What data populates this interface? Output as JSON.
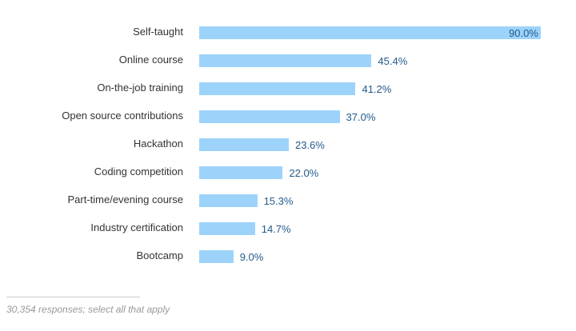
{
  "chart_data": {
    "type": "bar",
    "orientation": "horizontal",
    "categories": [
      "Self-taught",
      "Online course",
      "On-the-job training",
      "Open source contributions",
      "Hackathon",
      "Coding competition",
      "Part-time/evening course",
      "Industry certification",
      "Bootcamp"
    ],
    "values": [
      90.0,
      45.4,
      41.2,
      37.0,
      23.6,
      22.0,
      15.3,
      14.7,
      9.0
    ],
    "value_labels": [
      "90.0%",
      "45.4%",
      "41.2%",
      "37.0%",
      "23.6%",
      "22.0%",
      "15.3%",
      "14.7%",
      "9.0%"
    ],
    "unit": "%",
    "xlim": [
      0,
      90
    ],
    "grid": false,
    "bar_color": "#9dd3fb",
    "value_color": "#235a8c"
  },
  "footnote": "30,354 responses; select all that apply"
}
